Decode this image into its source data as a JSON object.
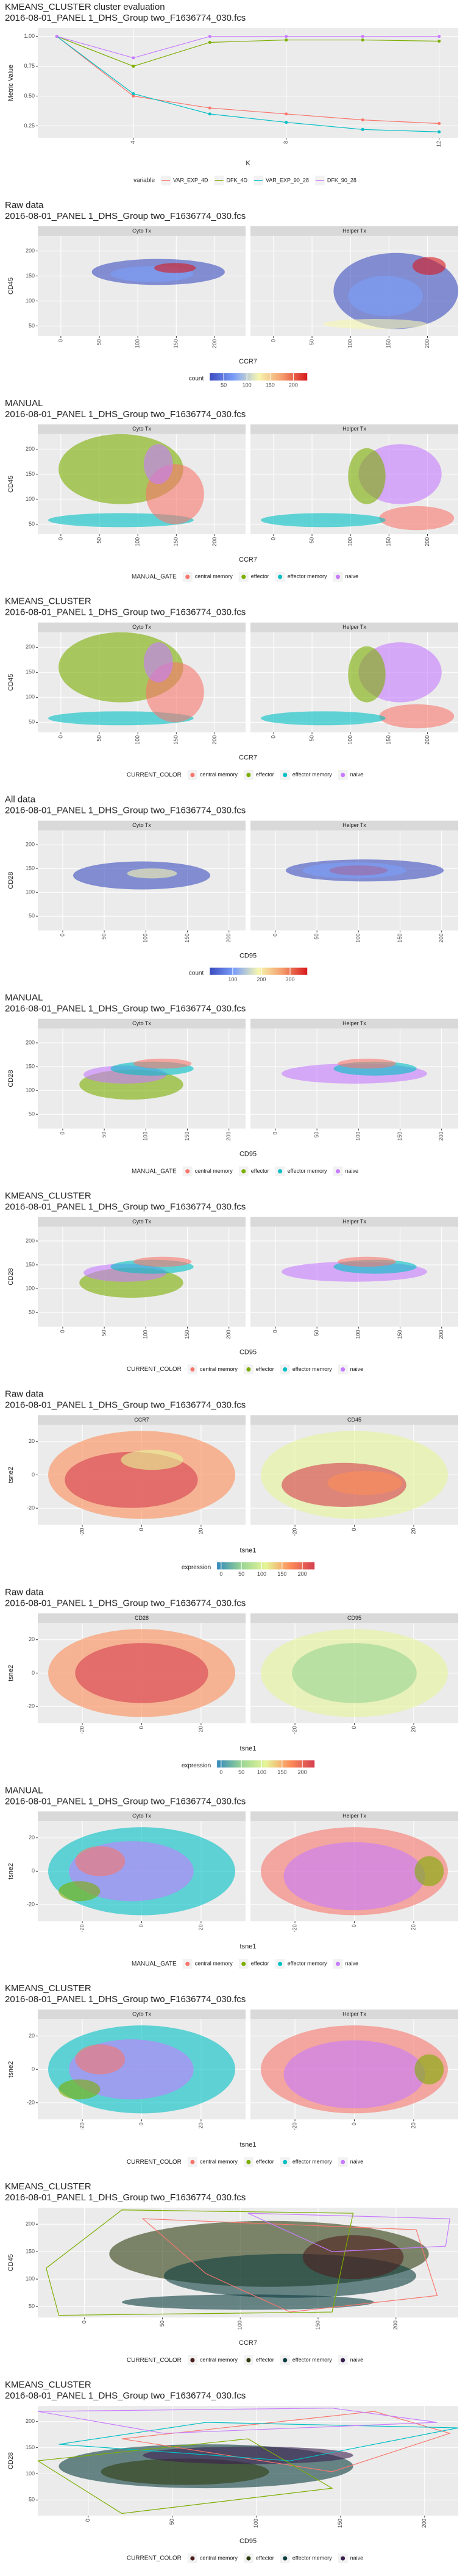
{
  "chart_data": [
    {
      "type": "line",
      "title": "KMEANS_CLUSTER cluster evaluation",
      "subtitle": "2016-08-01_PANEL 1_DHS_Group two_F1636774_030.fcs",
      "x_label": "K",
      "y_label": "Metric Value",
      "x": [
        2,
        4,
        6,
        8,
        10,
        12
      ],
      "xlim": [
        1.5,
        12.5
      ],
      "xticks": [
        4,
        8,
        12
      ],
      "ylim": [
        0.15,
        1.07
      ],
      "yticks": [
        0.25,
        {
          "value": 0.5,
          "label": "0.50"
        },
        0.75,
        {
          "value": 1,
          "label": "1.00"
        }
      ],
      "legend_title": "variable",
      "series": [
        {
          "name": "VAR_EXP_4D",
          "color": "#F8766D",
          "values": [
            1.0,
            0.5,
            0.4,
            0.35,
            0.3,
            0.27
          ]
        },
        {
          "name": "DFK_4D",
          "color": "#7CAE00",
          "values": [
            1.0,
            0.75,
            0.95,
            0.97,
            0.97,
            0.96
          ]
        },
        {
          "name": "VAR_EXP_90_28",
          "color": "#00BFC4",
          "values": [
            1.0,
            0.52,
            0.35,
            0.28,
            0.22,
            0.2
          ]
        },
        {
          "name": "DFK_90_28",
          "color": "#C77CFF",
          "values": [
            1.0,
            0.82,
            1.0,
            1.0,
            1.0,
            1.0
          ]
        }
      ]
    },
    {
      "type": "density",
      "title": "Raw data",
      "subtitle": "2016-08-01_PANEL 1_DHS_Group two_F1636774_030.fcs",
      "facets": [
        "Cyto Tx",
        "Helper Tx"
      ],
      "x_label": "CCR7",
      "y_label": "CD45",
      "xlim": [
        -30,
        240
      ],
      "xticks": [
        0,
        50,
        100,
        150,
        200
      ],
      "ylim": [
        30,
        230
      ],
      "yticks": [
        50,
        100,
        150,
        200
      ],
      "legend_title": "count",
      "colorbar": {
        "colors": [
          "#3b4cc0",
          "#7b9ff9",
          "#f7f7b0",
          "#f49a6b",
          "#d7191c"
        ],
        "lim": [
          20,
          230
        ],
        "ticks": [
          50,
          100,
          150,
          200
        ]
      }
    },
    {
      "type": "scatter",
      "title": "MANUAL",
      "subtitle": "2016-08-01_PANEL 1_DHS_Group two_F1636774_030.fcs",
      "facets": [
        "Cyto Tx",
        "Helper Tx"
      ],
      "x_label": "CCR7",
      "y_label": "CD45",
      "xlim": [
        -30,
        240
      ],
      "xticks": [
        0,
        50,
        100,
        150,
        200
      ],
      "ylim": [
        30,
        230
      ],
      "yticks": [
        50,
        100,
        150,
        200
      ],
      "legend_title": "MANUAL_GATE",
      "legend": [
        {
          "name": "central memory",
          "color": "#F8766D"
        },
        {
          "name": "effector",
          "color": "#7CAE00"
        },
        {
          "name": "effector memory",
          "color": "#00BFC4"
        },
        {
          "name": "naive",
          "color": "#C77CFF"
        }
      ]
    },
    {
      "type": "scatter",
      "title": "KMEANS_CLUSTER",
      "subtitle": "2016-08-01_PANEL 1_DHS_Group two_F1636774_030.fcs",
      "facets": [
        "Cyto Tx",
        "Helper Tx"
      ],
      "x_label": "CCR7",
      "y_label": "CD45",
      "xlim": [
        -30,
        240
      ],
      "xticks": [
        0,
        50,
        100,
        150,
        200
      ],
      "ylim": [
        30,
        230
      ],
      "yticks": [
        50,
        100,
        150,
        200
      ],
      "legend_title": "CURRENT_COLOR",
      "legend": [
        {
          "name": "central memory",
          "color": "#F8766D"
        },
        {
          "name": "effector",
          "color": "#7CAE00"
        },
        {
          "name": "effector memory",
          "color": "#00BFC4"
        },
        {
          "name": "naive",
          "color": "#C77CFF"
        }
      ]
    },
    {
      "type": "density",
      "title": "All data",
      "subtitle": "2016-08-01_PANEL 1_DHS_Group two_F1636774_030.fcs",
      "facets": [
        "Cyto Tx",
        "Helper Tx"
      ],
      "x_label": "CD95",
      "y_label": "CD28",
      "xlim": [
        -30,
        220
      ],
      "xticks": [
        0,
        50,
        100,
        150,
        200
      ],
      "ylim": [
        20,
        230
      ],
      "yticks": [
        50,
        100,
        150,
        200
      ],
      "legend_title": "count",
      "colorbar": {
        "colors": [
          "#3b4cc0",
          "#7b9ff9",
          "#f7f7b0",
          "#f49a6b",
          "#d7191c"
        ],
        "lim": [
          20,
          360
        ],
        "ticks": [
          100,
          200,
          300
        ]
      }
    },
    {
      "type": "scatter",
      "title": "MANUAL",
      "subtitle": "2016-08-01_PANEL 1_DHS_Group two_F1636774_030.fcs",
      "facets": [
        "Cyto Tx",
        "Helper Tx"
      ],
      "x_label": "CD95",
      "y_label": "CD28",
      "xlim": [
        -30,
        220
      ],
      "xticks": [
        0,
        50,
        100,
        150,
        200
      ],
      "ylim": [
        20,
        230
      ],
      "yticks": [
        50,
        100,
        150,
        200
      ],
      "legend_title": "MANUAL_GATE",
      "legend": [
        {
          "name": "central memory",
          "color": "#F8766D"
        },
        {
          "name": "effector",
          "color": "#7CAE00"
        },
        {
          "name": "effector memory",
          "color": "#00BFC4"
        },
        {
          "name": "naive",
          "color": "#C77CFF"
        }
      ]
    },
    {
      "type": "scatter",
      "title": "KMEANS_CLUSTER",
      "subtitle": "2016-08-01_PANEL 1_DHS_Group two_F1636774_030.fcs",
      "facets": [
        "Cyto Tx",
        "Helper Tx"
      ],
      "x_label": "CD95",
      "y_label": "CD28",
      "xlim": [
        -30,
        220
      ],
      "xticks": [
        0,
        50,
        100,
        150,
        200
      ],
      "ylim": [
        20,
        230
      ],
      "yticks": [
        50,
        100,
        150,
        200
      ],
      "legend_title": "CURRENT_COLOR",
      "legend": [
        {
          "name": "central memory",
          "color": "#F8766D"
        },
        {
          "name": "effector",
          "color": "#7CAE00"
        },
        {
          "name": "effector memory",
          "color": "#00BFC4"
        },
        {
          "name": "naive",
          "color": "#C77CFF"
        }
      ]
    },
    {
      "type": "density",
      "title": "Raw data",
      "subtitle": "2016-08-01_PANEL 1_DHS_Group two_F1636774_030.fcs",
      "facets": [
        "CCR7",
        "CD45"
      ],
      "x_label": "tsne1",
      "y_label": "tsne2",
      "xlim": [
        -35,
        35
      ],
      "xticks": [
        -20,
        0,
        20
      ],
      "ylim": [
        -30,
        30
      ],
      "yticks": [
        -20,
        0,
        20
      ],
      "legend_title": "expression",
      "colorbar": {
        "colors": [
          "#3288bd",
          "#99d594",
          "#e6f598",
          "#fc8d59",
          "#d53e4f"
        ],
        "lim": [
          -10,
          230
        ],
        "ticks": [
          0,
          50,
          100,
          150,
          200
        ]
      }
    },
    {
      "type": "density",
      "title": "Raw data",
      "subtitle": "2016-08-01_PANEL 1_DHS_Group two_F1636774_030.fcs",
      "facets": [
        "CD28",
        "CD95"
      ],
      "x_label": "tsne1",
      "y_label": "tsne2",
      "xlim": [
        -35,
        35
      ],
      "xticks": [
        -20,
        0,
        20
      ],
      "ylim": [
        -30,
        30
      ],
      "yticks": [
        -20,
        0,
        20
      ],
      "legend_title": "expression",
      "colorbar": {
        "colors": [
          "#3288bd",
          "#99d594",
          "#e6f598",
          "#fc8d59",
          "#d53e4f"
        ],
        "lim": [
          -10,
          230
        ],
        "ticks": [
          0,
          50,
          100,
          150,
          200
        ]
      }
    },
    {
      "type": "scatter",
      "title": "MANUAL",
      "subtitle": "2016-08-01_PANEL 1_DHS_Group two_F1636774_030.fcs",
      "facets": [
        "Cyto Tx",
        "Helper Tx"
      ],
      "x_label": "tsne1",
      "y_label": "tsne2",
      "xlim": [
        -35,
        35
      ],
      "xticks": [
        -20,
        0,
        20
      ],
      "ylim": [
        -30,
        30
      ],
      "yticks": [
        -20,
        0,
        20
      ],
      "legend_title": "MANUAL_GATE",
      "legend": [
        {
          "name": "central memory",
          "color": "#F8766D"
        },
        {
          "name": "effector",
          "color": "#7CAE00"
        },
        {
          "name": "effector memory",
          "color": "#00BFC4"
        },
        {
          "name": "naive",
          "color": "#C77CFF"
        }
      ]
    },
    {
      "type": "scatter",
      "title": "KMEANS_CLUSTER",
      "subtitle": "2016-08-01_PANEL 1_DHS_Group two_F1636774_030.fcs",
      "facets": [
        "Cyto Tx",
        "Helper Tx"
      ],
      "x_label": "tsne1",
      "y_label": "tsne2",
      "xlim": [
        -35,
        35
      ],
      "xticks": [
        -20,
        0,
        20
      ],
      "ylim": [
        -30,
        30
      ],
      "yticks": [
        -20,
        0,
        20
      ],
      "legend_title": "CURRENT_COLOR",
      "legend": [
        {
          "name": "central memory",
          "color": "#F8766D"
        },
        {
          "name": "effector",
          "color": "#7CAE00"
        },
        {
          "name": "effector memory",
          "color": "#00BFC4"
        },
        {
          "name": "naive",
          "color": "#C77CFF"
        }
      ]
    },
    {
      "type": "scatter",
      "title": "KMEANS_CLUSTER",
      "subtitle": "2016-08-01_PANEL 1_DHS_Group two_F1636774_030.fcs",
      "x_label": "CCR7",
      "y_label": "CD45",
      "xlim": [
        -30,
        240
      ],
      "xticks": [
        0,
        50,
        100,
        150,
        200
      ],
      "ylim": [
        30,
        230
      ],
      "yticks": [
        50,
        100,
        150,
        200
      ],
      "legend_title": "CURRENT_COLOR",
      "legend": [
        {
          "name": "central memory",
          "color": "#4d1f1f"
        },
        {
          "name": "effector",
          "color": "#2e3d10"
        },
        {
          "name": "effector memory",
          "color": "#0d3d3f"
        },
        {
          "name": "naive",
          "color": "#3a1f4f"
        }
      ]
    },
    {
      "type": "scatter",
      "title": "KMEANS_CLUSTER",
      "subtitle": "2016-08-01_PANEL 1_DHS_Group two_F1636774_030.fcs",
      "x_label": "CD95",
      "y_label": "CD28",
      "xlim": [
        -30,
        220
      ],
      "xticks": [
        0,
        50,
        100,
        150,
        200
      ],
      "ylim": [
        20,
        230
      ],
      "yticks": [
        50,
        100,
        150,
        200
      ],
      "legend_title": "CURRENT_COLOR",
      "legend": [
        {
          "name": "central memory",
          "color": "#4d1f1f"
        },
        {
          "name": "effector",
          "color": "#2e3d10"
        },
        {
          "name": "effector memory",
          "color": "#0d3d3f"
        },
        {
          "name": "naive",
          "color": "#3a1f4f"
        }
      ]
    }
  ]
}
